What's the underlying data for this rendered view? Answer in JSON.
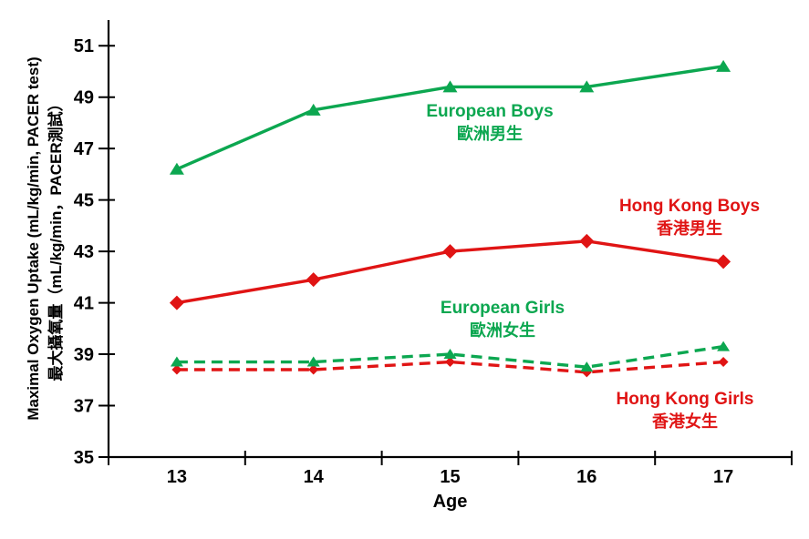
{
  "chart_data": {
    "type": "line",
    "title": "",
    "xlabel": "Age",
    "ylabel_en": "Maximal Oxygen Uptake (mL/kg/min, PACER test)",
    "ylabel_cn": "最大攝氧量（mL/kg/min，PACER測試）",
    "x": [
      13,
      14,
      15,
      16,
      17
    ],
    "ylim": [
      35,
      52
    ],
    "yticks": [
      35,
      37,
      39,
      41,
      43,
      45,
      47,
      49,
      51
    ],
    "grid": false,
    "axis_color": "#000000",
    "legend_position": "labels-on-chart",
    "series": [
      {
        "name": "European Boys",
        "label_en": "European Boys",
        "label_cn": "歐洲男生",
        "color": "#0CA750",
        "style": "solid",
        "marker": "triangle",
        "values": [
          46.2,
          48.5,
          49.4,
          49.4,
          50.2
        ]
      },
      {
        "name": "Hong Kong Boys",
        "label_en": "Hong Kong Boys",
        "label_cn": "香港男生",
        "color": "#E01414",
        "style": "solid",
        "marker": "diamond",
        "values": [
          41.0,
          41.9,
          43.0,
          43.4,
          42.6
        ]
      },
      {
        "name": "European Girls",
        "label_en": "European Girls",
        "label_cn": "歐洲女生",
        "color": "#0CA750",
        "style": "dashed",
        "marker": "triangle",
        "values": [
          38.7,
          38.7,
          39.0,
          38.5,
          39.3
        ]
      },
      {
        "name": "Hong Kong Girls",
        "label_en": "Hong Kong Girls",
        "label_cn": "香港女生",
        "color": "#E01414",
        "style": "dashed",
        "marker": "diamond",
        "values": [
          38.4,
          38.4,
          38.7,
          38.3,
          38.7
        ]
      }
    ]
  }
}
